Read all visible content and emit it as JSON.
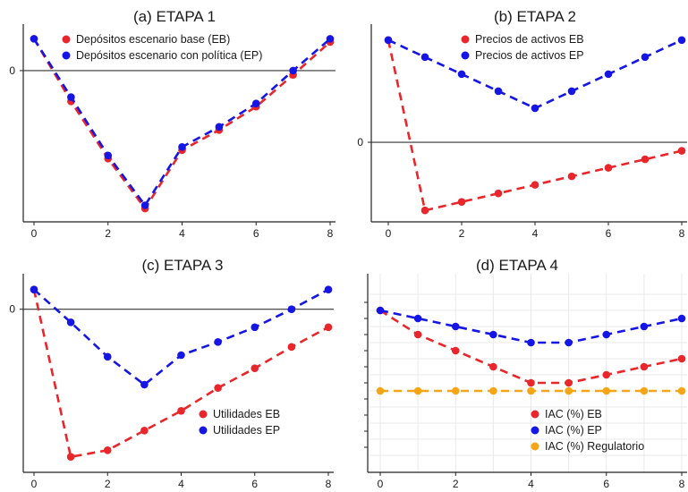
{
  "colors": {
    "eb": "#e8262b",
    "ep": "#1515e6",
    "reg": "#f5a515",
    "zero_line": "#333333",
    "axis": "#222222",
    "grid": "#e9e9e9",
    "text": "#1a1a1a"
  },
  "chart_data": [
    {
      "type": "line",
      "title": "(a) ETAPA 1",
      "xlabel": "",
      "ylabel": "",
      "x": [
        0,
        1,
        2,
        3,
        4,
        5,
        6,
        7,
        8
      ],
      "xticks": [
        "0",
        "2",
        "4",
        "6",
        "8"
      ],
      "yticks": [
        "0"
      ],
      "xlim": [
        0,
        8
      ],
      "ylim": [
        -13.5,
        3.2
      ],
      "zero_line": true,
      "grid": false,
      "legend": "top-left",
      "series": [
        {
          "name": "Depósitos escenario base (EB)",
          "color": "#e8262b",
          "values": [
            3.0,
            -2.9,
            -8.3,
            -13.0,
            -7.5,
            -5.6,
            -3.4,
            -0.4,
            2.7
          ]
        },
        {
          "name": "Depósitos escenario con política (EP)",
          "color": "#1515e6",
          "values": [
            3.0,
            -2.5,
            -8.0,
            -12.7,
            -7.2,
            -5.3,
            -3.1,
            0.0,
            3.0
          ]
        }
      ]
    },
    {
      "type": "line",
      "title": "(b) ETAPA 2",
      "xlabel": "",
      "ylabel": "",
      "x": [
        0,
        1,
        2,
        3,
        4,
        5,
        6,
        7,
        8
      ],
      "xticks": [
        "0",
        "2",
        "4",
        "6",
        "8"
      ],
      "yticks": [
        "0"
      ],
      "xlim": [
        0,
        8
      ],
      "ylim": [
        -4.2,
        6.2
      ],
      "zero_line": true,
      "grid": false,
      "legend": "top-left",
      "series": [
        {
          "name": "Precios de activos EB",
          "color": "#e8262b",
          "values": [
            6.0,
            -4.0,
            -3.5,
            -3.0,
            -2.5,
            -2.0,
            -1.5,
            -1.0,
            -0.5
          ]
        },
        {
          "name": "Precios de activos EP",
          "color": "#1515e6",
          "values": [
            6.0,
            5.0,
            4.0,
            3.0,
            2.0,
            3.0,
            4.0,
            5.0,
            6.0
          ]
        }
      ]
    },
    {
      "type": "line",
      "title": "(c) ETAPA 3",
      "xlabel": "",
      "ylabel": "",
      "x": [
        0,
        1,
        2,
        3,
        4,
        5,
        6,
        7,
        8
      ],
      "xticks": [
        "0",
        "2",
        "4",
        "6",
        "8"
      ],
      "yticks": [
        "0"
      ],
      "xlim": [
        0,
        8
      ],
      "ylim": [
        -9.4,
        1.4
      ],
      "zero_line": true,
      "grid": false,
      "legend": "bottom-right",
      "series": [
        {
          "name": "Utilidades EB",
          "color": "#e8262b",
          "values": [
            1.2,
            -9.0,
            -8.6,
            -7.4,
            -6.2,
            -4.8,
            -3.6,
            -2.3,
            -1.1
          ]
        },
        {
          "name": "Utilidades EP",
          "color": "#1515e6",
          "values": [
            1.2,
            -0.8,
            -2.9,
            -4.6,
            -2.8,
            -2.0,
            -1.1,
            0.0,
            1.2
          ]
        }
      ]
    },
    {
      "type": "line",
      "title": "(d) ETAPA 4",
      "xlabel": "",
      "ylabel": "",
      "x": [
        0,
        1,
        2,
        3,
        4,
        5,
        6,
        7,
        8
      ],
      "xticks": [
        "0",
        "2",
        "4",
        "6",
        "8"
      ],
      "yticks": [],
      "xlim": [
        0,
        8
      ],
      "ylim": [
        -1.8,
        2.6
      ],
      "zero_line": false,
      "grid": true,
      "legend": "bottom-right",
      "series": [
        {
          "name": "IAC (%) EB",
          "color": "#e8262b",
          "values": [
            2.0,
            1.4,
            1.0,
            0.6,
            0.2,
            0.2,
            0.4,
            0.6,
            0.8
          ]
        },
        {
          "name": "IAC (%) EP",
          "color": "#1515e6",
          "values": [
            2.0,
            1.8,
            1.6,
            1.4,
            1.2,
            1.2,
            1.4,
            1.6,
            1.8
          ]
        },
        {
          "name": "IAC (%) Regulatorio",
          "color": "#f5a515",
          "values": [
            0.0,
            0.0,
            0.0,
            0.0,
            0.0,
            0.0,
            0.0,
            0.0,
            0.0
          ]
        }
      ]
    }
  ]
}
